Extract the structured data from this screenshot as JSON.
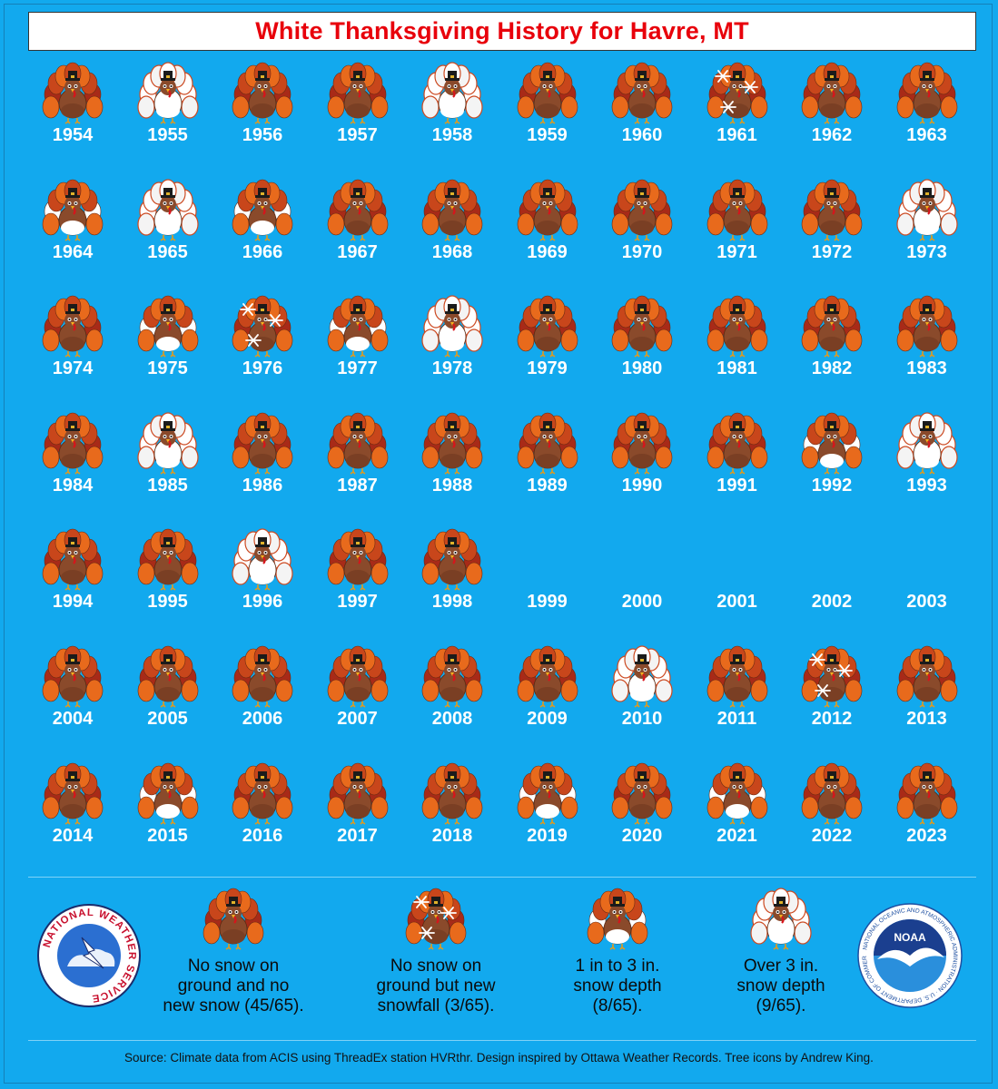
{
  "title": "White Thanksgiving History for Havre, MT",
  "colors": {
    "background": "#12a9ee",
    "title_text": "#e8000b",
    "year_text": "#ffffff"
  },
  "legend_icon_names": {
    "none": "turkey-icon",
    "new_snow": "turkey-snowflakes-icon",
    "one_to_three": "turkey-light-snow-icon",
    "over_three": "turkey-heavy-snow-icon"
  },
  "rows": [
    [
      {
        "year": "1954",
        "cat": "none"
      },
      {
        "year": "1955",
        "cat": "over3"
      },
      {
        "year": "1956",
        "cat": "none"
      },
      {
        "year": "1957",
        "cat": "none"
      },
      {
        "year": "1958",
        "cat": "over3"
      },
      {
        "year": "1959",
        "cat": "none"
      },
      {
        "year": "1960",
        "cat": "none"
      },
      {
        "year": "1961",
        "cat": "new"
      },
      {
        "year": "1962",
        "cat": "none"
      },
      {
        "year": "1963",
        "cat": "none"
      }
    ],
    [
      {
        "year": "1964",
        "cat": "1to3"
      },
      {
        "year": "1965",
        "cat": "over3"
      },
      {
        "year": "1966",
        "cat": "1to3"
      },
      {
        "year": "1967",
        "cat": "none"
      },
      {
        "year": "1968",
        "cat": "none"
      },
      {
        "year": "1969",
        "cat": "none"
      },
      {
        "year": "1970",
        "cat": "none"
      },
      {
        "year": "1971",
        "cat": "none"
      },
      {
        "year": "1972",
        "cat": "none"
      },
      {
        "year": "1973",
        "cat": "over3"
      }
    ],
    [
      {
        "year": "1974",
        "cat": "none"
      },
      {
        "year": "1975",
        "cat": "1to3"
      },
      {
        "year": "1976",
        "cat": "new"
      },
      {
        "year": "1977",
        "cat": "1to3"
      },
      {
        "year": "1978",
        "cat": "over3"
      },
      {
        "year": "1979",
        "cat": "none"
      },
      {
        "year": "1980",
        "cat": "none"
      },
      {
        "year": "1981",
        "cat": "none"
      },
      {
        "year": "1982",
        "cat": "none"
      },
      {
        "year": "1983",
        "cat": "none"
      }
    ],
    [
      {
        "year": "1984",
        "cat": "none"
      },
      {
        "year": "1985",
        "cat": "over3"
      },
      {
        "year": "1986",
        "cat": "none"
      },
      {
        "year": "1987",
        "cat": "none"
      },
      {
        "year": "1988",
        "cat": "none"
      },
      {
        "year": "1989",
        "cat": "none"
      },
      {
        "year": "1990",
        "cat": "none"
      },
      {
        "year": "1991",
        "cat": "none"
      },
      {
        "year": "1992",
        "cat": "1to3"
      },
      {
        "year": "1993",
        "cat": "over3"
      }
    ],
    [
      {
        "year": "1994",
        "cat": "none"
      },
      {
        "year": "1995",
        "cat": "none"
      },
      {
        "year": "1996",
        "cat": "over3"
      },
      {
        "year": "1997",
        "cat": "none"
      },
      {
        "year": "1998",
        "cat": "none"
      },
      {
        "year": "1999",
        "cat": "blank"
      },
      {
        "year": "2000",
        "cat": "blank"
      },
      {
        "year": "2001",
        "cat": "blank"
      },
      {
        "year": "2002",
        "cat": "blank"
      },
      {
        "year": "2003",
        "cat": "blank"
      }
    ],
    [
      {
        "year": "2004",
        "cat": "none"
      },
      {
        "year": "2005",
        "cat": "none"
      },
      {
        "year": "2006",
        "cat": "none"
      },
      {
        "year": "2007",
        "cat": "none"
      },
      {
        "year": "2008",
        "cat": "none"
      },
      {
        "year": "2009",
        "cat": "none"
      },
      {
        "year": "2010",
        "cat": "over3"
      },
      {
        "year": "2011",
        "cat": "none"
      },
      {
        "year": "2012",
        "cat": "new"
      },
      {
        "year": "2013",
        "cat": "none"
      }
    ],
    [
      {
        "year": "2014",
        "cat": "none"
      },
      {
        "year": "2015",
        "cat": "1to3"
      },
      {
        "year": "2016",
        "cat": "none"
      },
      {
        "year": "2017",
        "cat": "none"
      },
      {
        "year": "2018",
        "cat": "none"
      },
      {
        "year": "2019",
        "cat": "1to3"
      },
      {
        "year": "2020",
        "cat": "none"
      },
      {
        "year": "2021",
        "cat": "1to3"
      },
      {
        "year": "2022",
        "cat": "none"
      },
      {
        "year": "2023",
        "cat": "none"
      }
    ]
  ],
  "legend": [
    {
      "cat": "none",
      "lines": [
        "No snow on",
        "ground and no",
        "new snow (45/65)."
      ]
    },
    {
      "cat": "new",
      "lines": [
        "No snow on",
        "ground but new",
        "snowfall (3/65)."
      ]
    },
    {
      "cat": "1to3",
      "lines": [
        "1 in to 3 in.",
        "snow depth",
        "(8/65)."
      ]
    },
    {
      "cat": "over3",
      "lines": [
        "Over 3 in.",
        "snow depth",
        "(9/65)."
      ]
    }
  ],
  "nws_logo_text": "NATIONAL WEATHER SERVICE",
  "noaa_logo_text": "NOAA",
  "noaa_ring_text": "NATIONAL OCEANIC AND ATMOSPHERIC ADMINISTRATION · U.S. DEPARTMENT OF COMMERCE",
  "footer": "Source: Climate data from ACIS using ThreadEx station HVRthr. Design inspired by Ottawa Weather Records. Tree icons by Andrew King."
}
